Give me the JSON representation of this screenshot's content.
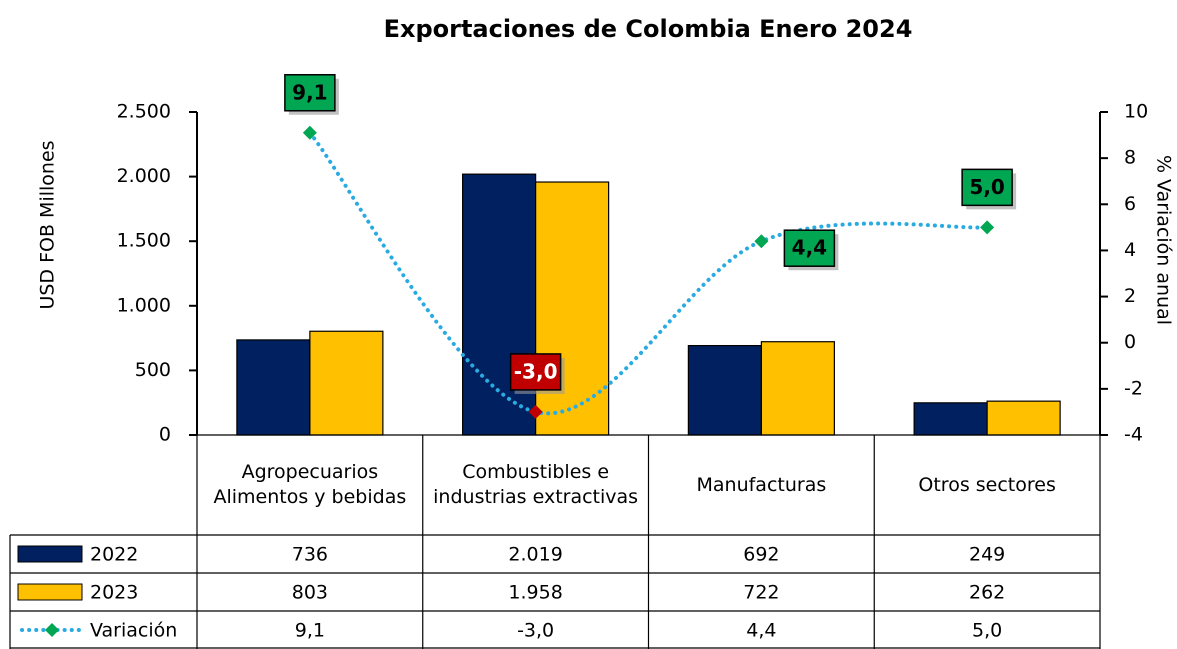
{
  "chart_data": {
    "type": "bar",
    "title": "Exportaciones de Colombia Enero 2024",
    "ylabel": "USD FOB Millones",
    "y2label": "% Variación anual",
    "categories": [
      "Agropecuarios Alimentos y bebidas",
      "Combustibles e industrias extractivas",
      "Manufacturas",
      "Otros sectores"
    ],
    "series": [
      {
        "name": "2022",
        "color": "#002060",
        "values": [
          736,
          2019,
          692,
          249
        ],
        "value_labels": [
          "736",
          "2.019",
          "692",
          "249"
        ]
      },
      {
        "name": "2023",
        "color": "#ffc000",
        "values": [
          803,
          1958,
          722,
          262
        ],
        "value_labels": [
          "803",
          "1.958",
          "722",
          "262"
        ]
      },
      {
        "name": "Variación",
        "type": "line",
        "axis": "y2",
        "color": "#29abe2",
        "marker_color": "#00a651",
        "negative_color": "#c00000",
        "values": [
          9.1,
          -3.0,
          4.4,
          5.0
        ],
        "value_labels": [
          "9,1",
          "-3,0",
          "4,4",
          "5,0"
        ]
      }
    ],
    "ylim": [
      0,
      2500
    ],
    "yticks": [
      0,
      500,
      {
        "value": 1000,
        "label": "1.000"
      },
      {
        "value": 1500,
        "label": "1.500"
      },
      {
        "value": 2000,
        "label": "2.000"
      },
      {
        "value": 2500,
        "label": "2.500"
      }
    ],
    "y2lim": [
      -4,
      10
    ],
    "y2ticks": [
      -4,
      -2,
      0,
      2,
      4,
      6,
      8,
      10
    ],
    "grid": false
  }
}
